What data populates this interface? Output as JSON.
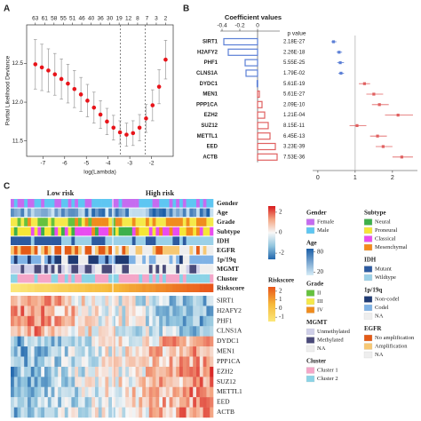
{
  "panels": [
    "A",
    "B",
    "C"
  ],
  "chart_data": [
    {
      "type": "errorbar",
      "x_label": "log(Lambda)",
      "y_label": "Partial Likelihood Deviance",
      "x": [
        -7.35,
        -7.05,
        -6.75,
        -6.45,
        -6.15,
        -5.85,
        -5.55,
        -5.25,
        -4.95,
        -4.65,
        -4.35,
        -4.05,
        -3.75,
        -3.45,
        -3.15,
        -2.85,
        -2.55,
        -2.25,
        -1.95,
        -1.65,
        -1.35
      ],
      "values": [
        12.49,
        12.45,
        12.41,
        12.36,
        12.3,
        12.24,
        12.17,
        12.1,
        12.02,
        11.93,
        11.84,
        11.75,
        11.67,
        11.61,
        11.58,
        11.6,
        11.67,
        11.79,
        11.96,
        12.2,
        12.55
      ],
      "errors": [
        0.32,
        0.3,
        0.28,
        0.27,
        0.26,
        0.25,
        0.24,
        0.22,
        0.21,
        0.2,
        0.18,
        0.17,
        0.16,
        0.15,
        0.15,
        0.16,
        0.17,
        0.18,
        0.2,
        0.22,
        0.25
      ],
      "color": "#e8141a",
      "error_color": "#9a9a9a",
      "xlim": [
        -7.75,
        -1.0
      ],
      "ylim": [
        11.3,
        13.0
      ],
      "xticks": [
        -7,
        -6,
        -5,
        -4,
        -3,
        -2
      ],
      "yticks": [
        {
          "value": 11.5,
          "label": "11.5"
        },
        {
          "value": 12,
          "label": "12.0"
        },
        {
          "value": 12.5,
          "label": "12.5"
        }
      ],
      "top_ticks": [
        {
          "value": -7.35,
          "label": "63"
        },
        {
          "value": -6.92,
          "label": "61"
        },
        {
          "value": -6.49,
          "label": "58"
        },
        {
          "value": -6.06,
          "label": "55"
        },
        {
          "value": -5.64,
          "label": "51"
        },
        {
          "value": -5.21,
          "label": "46"
        },
        {
          "value": -4.78,
          "label": "40"
        },
        {
          "value": -4.35,
          "label": "36"
        },
        {
          "value": -3.92,
          "label": "30"
        },
        {
          "value": -3.49,
          "label": "19"
        },
        {
          "value": -3.06,
          "label": "12"
        },
        {
          "value": -2.64,
          "label": "8"
        },
        {
          "value": -2.21,
          "label": "7"
        },
        {
          "value": -1.78,
          "label": "3"
        },
        {
          "value": -1.35,
          "label": "2"
        }
      ],
      "vlines": [
        -3.43,
        -2.29
      ]
    },
    {
      "type": "hbar",
      "title": "Coefficient values",
      "categories": [
        "SIRT1",
        "H2AFY2",
        "PHF1",
        "CLNS1A",
        "DYDC1",
        "MEN1",
        "PPP1CA",
        "EZH2",
        "SUZ12",
        "METTL1",
        "EED",
        "ACTB"
      ],
      "values": [
        -0.38,
        -0.33,
        -0.14,
        -0.13,
        -0.005,
        0.02,
        0.05,
        0.08,
        0.12,
        0.14,
        0.2,
        0.22
      ],
      "negative_color": "#5b7fd6",
      "positive_color": "#e06060",
      "xlim": [
        -0.42,
        0.25
      ],
      "xticks": [
        -0.4,
        -0.2,
        0
      ],
      "p_label": "p value",
      "p_values": [
        "2.18E-27",
        "2.26E-18",
        "5.55E-25",
        "1.79E-02",
        "5.61E-19",
        "5.61E-27",
        "2.09E-10",
        "1.21E-04",
        "8.15E-11",
        "6.45E-13",
        "3.23E-39",
        "7.53E-36"
      ]
    },
    {
      "type": "forest",
      "values": [
        0.42,
        0.57,
        0.6,
        0.62,
        1.25,
        1.5,
        1.65,
        2.15,
        1.05,
        1.6,
        1.75,
        2.25
      ],
      "lower": [
        0.36,
        0.5,
        0.52,
        0.55,
        1.1,
        1.3,
        1.45,
        1.8,
        0.85,
        1.4,
        1.55,
        2.0
      ],
      "upper": [
        0.5,
        0.65,
        0.7,
        0.7,
        1.4,
        1.75,
        1.9,
        2.55,
        1.3,
        1.85,
        2.0,
        2.55
      ],
      "low_color": "#5b7fd6",
      "high_color": "#e06060",
      "ref_line": 1,
      "xlim": [
        -0.14,
        2.67
      ],
      "xticks": [
        0,
        1,
        2
      ]
    }
  ],
  "heatmap": {
    "groups": [
      "Low risk",
      "High risk"
    ],
    "annotation_rows": [
      "Gender",
      "Age",
      "Grade",
      "Subtype",
      "IDH",
      "EGFR",
      "1p/19q",
      "MGMT",
      "Cluster",
      "Riskscore"
    ],
    "gene_rows": [
      "SIRT1",
      "H2AFY2",
      "PHF1",
      "CLNS1A",
      "DYDC1",
      "MEN1",
      "PPP1CA",
      "EZH2",
      "SUZ12",
      "METTL1",
      "EED",
      "ACTB"
    ],
    "expression_scale": {
      "lim": [
        -2.6,
        2.6
      ],
      "ticks": [
        2,
        0,
        -2
      ],
      "colors": [
        "#d7191c",
        "#f4a582",
        "#f7f7f7",
        "#92c5de",
        "#2166ac"
      ]
    },
    "riskscore_legend": {
      "title": "Riskscore",
      "lim": [
        -1.5,
        2.5
      ],
      "ticks": [
        2,
        1,
        0,
        -1
      ],
      "colors": [
        "#e8541a",
        "#f6b93b",
        "#fbe77a"
      ]
    },
    "legends": [
      {
        "title": "Gender",
        "items": [
          {
            "label": "Female",
            "color": "#c56cf0"
          },
          {
            "label": "Male",
            "color": "#5ec6f2"
          }
        ]
      },
      {
        "title": "Age",
        "lim": [
          10,
          90
        ],
        "ticks": [
          80,
          20
        ],
        "colors": [
          "#1c5fa8",
          "#d6ecf7"
        ]
      },
      {
        "title": "Grade",
        "items": [
          {
            "label": "II",
            "color": "#66c23e"
          },
          {
            "label": "III",
            "color": "#f5e94a"
          },
          {
            "label": "IV",
            "color": "#f08c1e"
          }
        ]
      },
      {
        "title": "MGMT",
        "items": [
          {
            "label": "Unmethylated",
            "color": "#cfcfe8"
          },
          {
            "label": "Methylated",
            "color": "#4b4b7a"
          },
          {
            "label": "NA",
            "color": "#eeeeee"
          }
        ]
      },
      {
        "title": "Cluster",
        "items": [
          {
            "label": "Cluster 1",
            "color": "#f4a6c8"
          },
          {
            "label": "Cluster 2",
            "color": "#8bd3e6"
          }
        ]
      },
      {
        "title": "Subtype",
        "items": [
          {
            "label": "Neural",
            "color": "#3db04a"
          },
          {
            "label": "Proneural",
            "color": "#f5e637"
          },
          {
            "label": "Classical",
            "color": "#e84df0"
          },
          {
            "label": "Mesenchymal",
            "color": "#f58a1b"
          }
        ]
      },
      {
        "title": "IDH",
        "items": [
          {
            "label": "Mutant",
            "color": "#2c5aa0"
          },
          {
            "label": "Wildtype",
            "color": "#9ad0e8"
          }
        ]
      },
      {
        "title": "1p/19q",
        "items": [
          {
            "label": "Non-codel",
            "color": "#1f3a73"
          },
          {
            "label": "Codel",
            "color": "#7fb2e5"
          },
          {
            "label": "NA",
            "color": "#eeeeee"
          }
        ]
      },
      {
        "title": "EGFR",
        "items": [
          {
            "label": "No amplification",
            "color": "#e35a16"
          },
          {
            "label": "Amplification",
            "color": "#f7c873"
          },
          {
            "label": "NA",
            "color": "#eeeeee"
          }
        ]
      }
    ]
  }
}
